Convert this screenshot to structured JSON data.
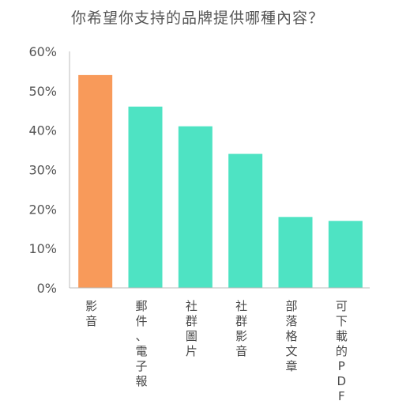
{
  "chart_data": {
    "type": "bar",
    "title": "你希望你支持的品牌提供哪種內容？",
    "xlabel": "",
    "ylabel": "",
    "categories": [
      "影音",
      "郵件、電子報",
      "社群圖片",
      "社群影音",
      "部落格文章",
      "可下載的PDF"
    ],
    "values": [
      54,
      46,
      41,
      34,
      18,
      17
    ],
    "ylim": [
      0,
      60
    ],
    "yticks": [
      "0%",
      "10%",
      "20%",
      "30%",
      "40%",
      "50%",
      "60%"
    ],
    "grid": false,
    "legend": "none",
    "colors": {
      "highlight": "#F89A5A",
      "default": "#4EE3C3",
      "axis": "#BDBDBD"
    }
  }
}
